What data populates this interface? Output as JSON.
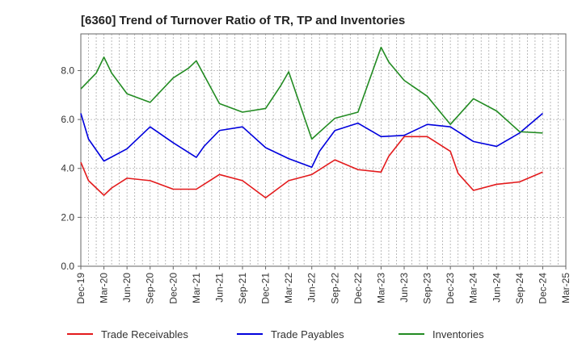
{
  "chart_data": {
    "type": "line",
    "title": "[6360]  Trend of Turnover Ratio of TR, TP and Inventories",
    "xlabel": "",
    "ylabel": "",
    "ylim": [
      0,
      9.5
    ],
    "y_ticks": [
      "0.0",
      "2.0",
      "4.0",
      "6.0",
      "8.0"
    ],
    "y_tick_values": [
      0,
      2,
      4,
      6,
      8
    ],
    "x_tick_labels": [
      "Dec-19",
      "Mar-20",
      "Jun-20",
      "Sep-20",
      "Dec-20",
      "Mar-21",
      "Jun-21",
      "Sep-21",
      "Dec-21",
      "Mar-22",
      "Jun-22",
      "Sep-22",
      "Dec-22",
      "Mar-23",
      "Jun-23",
      "Sep-23",
      "Dec-23",
      "Mar-24",
      "Jun-24",
      "Sep-24",
      "Dec-24",
      "Mar-25"
    ],
    "grid": true,
    "legend_position": "bottom",
    "x": [
      "Dec-19",
      "Jan-20",
      "Feb-20",
      "Mar-20",
      "Apr-20",
      "May-20",
      "Jun-20",
      "Jul-20",
      "Aug-20",
      "Sep-20",
      "Oct-20",
      "Nov-20",
      "Dec-20",
      "Jan-21",
      "Feb-21",
      "Mar-21",
      "Apr-21",
      "May-21",
      "Jun-21",
      "Jul-21",
      "Aug-21",
      "Sep-21",
      "Oct-21",
      "Nov-21",
      "Dec-21",
      "Jan-22",
      "Feb-22",
      "Mar-22",
      "Apr-22",
      "May-22",
      "Jun-22",
      "Jul-22",
      "Aug-22",
      "Sep-22",
      "Oct-22",
      "Nov-22",
      "Dec-22",
      "Jan-23",
      "Feb-23",
      "Mar-23",
      "Apr-23",
      "May-23",
      "Jun-23",
      "Jul-23",
      "Aug-23",
      "Sep-23",
      "Oct-23",
      "Nov-23",
      "Dec-23",
      "Jan-24",
      "Feb-24",
      "Mar-24",
      "Apr-24",
      "May-24",
      "Jun-24",
      "Jul-24",
      "Aug-24",
      "Sep-24",
      "Oct-24",
      "Nov-24",
      "Dec-24",
      "Jan-25",
      "Feb-25",
      "Mar-25"
    ],
    "series": [
      {
        "name": "Trade Receivables",
        "color": "#e31a1c",
        "points": [
          {
            "x": "Dec-19",
            "y": 4.25
          },
          {
            "x": "Jan-20",
            "y": 3.5
          },
          {
            "x": "Mar-20",
            "y": 2.9
          },
          {
            "x": "Apr-20",
            "y": 3.2
          },
          {
            "x": "Jun-20",
            "y": 3.6
          },
          {
            "x": "Sep-20",
            "y": 3.5
          },
          {
            "x": "Dec-20",
            "y": 3.15
          },
          {
            "x": "Mar-21",
            "y": 3.15
          },
          {
            "x": "Jun-21",
            "y": 3.75
          },
          {
            "x": "Sep-21",
            "y": 3.5
          },
          {
            "x": "Dec-21",
            "y": 2.8
          },
          {
            "x": "Mar-22",
            "y": 3.5
          },
          {
            "x": "Jun-22",
            "y": 3.75
          },
          {
            "x": "Sep-22",
            "y": 4.35
          },
          {
            "x": "Dec-22",
            "y": 3.95
          },
          {
            "x": "Mar-23",
            "y": 3.85
          },
          {
            "x": "Apr-23",
            "y": 4.5
          },
          {
            "x": "Jun-23",
            "y": 5.3
          },
          {
            "x": "Sep-23",
            "y": 5.3
          },
          {
            "x": "Dec-23",
            "y": 4.7
          },
          {
            "x": "Jan-24",
            "y": 3.8
          },
          {
            "x": "Mar-24",
            "y": 3.1
          },
          {
            "x": "Jun-24",
            "y": 3.35
          },
          {
            "x": "Sep-24",
            "y": 3.45
          },
          {
            "x": "Dec-24",
            "y": 3.85
          }
        ]
      },
      {
        "name": "Trade Payables",
        "color": "#0000dd",
        "points": [
          {
            "x": "Dec-19",
            "y": 6.25
          },
          {
            "x": "Jan-20",
            "y": 5.2
          },
          {
            "x": "Mar-20",
            "y": 4.3
          },
          {
            "x": "Jun-20",
            "y": 4.8
          },
          {
            "x": "Sep-20",
            "y": 5.7
          },
          {
            "x": "Dec-20",
            "y": 5.05
          },
          {
            "x": "Mar-21",
            "y": 4.45
          },
          {
            "x": "Apr-21",
            "y": 4.9
          },
          {
            "x": "Jun-21",
            "y": 5.55
          },
          {
            "x": "Sep-21",
            "y": 5.7
          },
          {
            "x": "Dec-21",
            "y": 4.85
          },
          {
            "x": "Mar-22",
            "y": 4.4
          },
          {
            "x": "Jun-22",
            "y": 4.05
          },
          {
            "x": "Jul-22",
            "y": 4.7
          },
          {
            "x": "Sep-22",
            "y": 5.55
          },
          {
            "x": "Dec-22",
            "y": 5.85
          },
          {
            "x": "Mar-23",
            "y": 5.3
          },
          {
            "x": "Jun-23",
            "y": 5.35
          },
          {
            "x": "Sep-23",
            "y": 5.8
          },
          {
            "x": "Dec-23",
            "y": 5.7
          },
          {
            "x": "Mar-24",
            "y": 5.1
          },
          {
            "x": "Jun-24",
            "y": 4.9
          },
          {
            "x": "Sep-24",
            "y": 5.45
          },
          {
            "x": "Dec-24",
            "y": 6.25
          }
        ]
      },
      {
        "name": "Inventories",
        "color": "#228b22",
        "points": [
          {
            "x": "Dec-19",
            "y": 7.25
          },
          {
            "x": "Feb-20",
            "y": 7.9
          },
          {
            "x": "Mar-20",
            "y": 8.55
          },
          {
            "x": "Apr-20",
            "y": 7.9
          },
          {
            "x": "Jun-20",
            "y": 7.05
          },
          {
            "x": "Sep-20",
            "y": 6.7
          },
          {
            "x": "Dec-20",
            "y": 7.7
          },
          {
            "x": "Feb-21",
            "y": 8.1
          },
          {
            "x": "Mar-21",
            "y": 8.4
          },
          {
            "x": "Jun-21",
            "y": 6.65
          },
          {
            "x": "Sep-21",
            "y": 6.3
          },
          {
            "x": "Dec-21",
            "y": 6.45
          },
          {
            "x": "Feb-22",
            "y": 7.4
          },
          {
            "x": "Mar-22",
            "y": 7.95
          },
          {
            "x": "Jun-22",
            "y": 5.2
          },
          {
            "x": "Sep-22",
            "y": 6.05
          },
          {
            "x": "Dec-22",
            "y": 6.3
          },
          {
            "x": "Mar-23",
            "y": 8.95
          },
          {
            "x": "Apr-23",
            "y": 8.35
          },
          {
            "x": "Jun-23",
            "y": 7.6
          },
          {
            "x": "Sep-23",
            "y": 6.95
          },
          {
            "x": "Dec-23",
            "y": 5.8
          },
          {
            "x": "Mar-24",
            "y": 6.85
          },
          {
            "x": "Jun-24",
            "y": 6.35
          },
          {
            "x": "Sep-24",
            "y": 5.5
          },
          {
            "x": "Dec-24",
            "y": 5.45
          }
        ]
      }
    ]
  }
}
